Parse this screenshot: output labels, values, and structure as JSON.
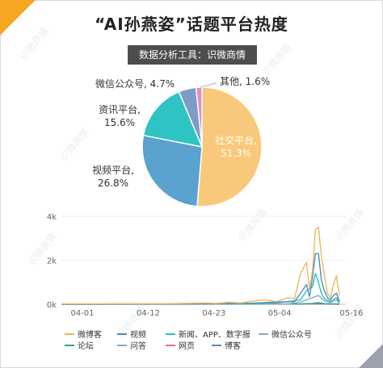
{
  "title": "“AI孙燕姿”话题平台热度",
  "subtitle": "数据分析工具：识微商情",
  "watermark": "识微商情",
  "colors": {
    "social": "#f8c97a",
    "video": "#5aa2cf",
    "news": "#2ec4c4",
    "wechat": "#7a9cc6",
    "other": "#e38bc6",
    "weibo_line": "#f0b75d",
    "video_line": "#4d8cc0",
    "news_line": "#25c2c2",
    "wechat_line": "#8ea6c8",
    "forum_line": "#2fa37a",
    "qa_line": "#6fb1d8",
    "web_line": "#e7737f",
    "blog_line": "#5e86b8"
  },
  "chart_data": [
    {
      "type": "pie",
      "slices": [
        {
          "name": "社交平台",
          "value": 51.3,
          "label_line1": "社交平台,",
          "label_line2": "51.3%",
          "color": "#f8c97a"
        },
        {
          "name": "视频平台",
          "value": 26.8,
          "label_line1": "视频平台,",
          "label_line2": "26.8%",
          "color": "#5aa2cf"
        },
        {
          "name": "资讯平台",
          "value": 15.6,
          "label_line1": "资讯平台,",
          "label_line2": "15.6%",
          "color": "#2ec4c4"
        },
        {
          "name": "微信公众号",
          "value": 4.7,
          "label": "微信公众号, 4.7%",
          "color": "#7a9cc6"
        },
        {
          "name": "其他",
          "value": 1.6,
          "label": "其他, 1.6%",
          "color": "#e38bc6"
        }
      ]
    },
    {
      "type": "line",
      "x_start": "04-01",
      "x_end": "05-17",
      "x_ticks": [
        "04-01",
        "04-12",
        "04-23",
        "05-04",
        "05-16"
      ],
      "y_ticks": [
        "0k",
        "2k",
        "4k"
      ],
      "ylim": [
        0,
        4000
      ],
      "grid": true,
      "legend_position": "bottom",
      "series": [
        {
          "name": "微博客",
          "color": "#f0b75d",
          "values": [
            [
              0,
              20
            ],
            [
              18,
              25
            ],
            [
              24,
              60
            ],
            [
              26,
              40
            ],
            [
              28,
              90
            ],
            [
              30,
              60
            ],
            [
              32,
              150
            ],
            [
              34,
              200
            ],
            [
              36,
              120
            ],
            [
              38,
              300
            ],
            [
              39,
              250
            ],
            [
              40,
              1400
            ],
            [
              41,
              1900
            ],
            [
              41.5,
              700
            ],
            [
              42,
              1500
            ],
            [
              42.5,
              3400
            ],
            [
              43,
              3500
            ],
            [
              43.5,
              2200
            ],
            [
              44,
              1300
            ],
            [
              44.5,
              500
            ],
            [
              45,
              300
            ],
            [
              45.5,
              900
            ],
            [
              46,
              1300
            ],
            [
              46.5,
              400
            ]
          ]
        },
        {
          "name": "视频",
          "color": "#4d8cc0",
          "values": [
            [
              0,
              10
            ],
            [
              24,
              20
            ],
            [
              32,
              50
            ],
            [
              36,
              100
            ],
            [
              39,
              120
            ],
            [
              40,
              500
            ],
            [
              41,
              900
            ],
            [
              41.5,
              350
            ],
            [
              42,
              1200
            ],
            [
              42.5,
              2300
            ],
            [
              43,
              2300
            ],
            [
              43.5,
              1100
            ],
            [
              44,
              600
            ],
            [
              44.5,
              300
            ],
            [
              45,
              200
            ],
            [
              45.5,
              400
            ],
            [
              46,
              500
            ],
            [
              46.5,
              150
            ]
          ]
        },
        {
          "name": "新闻、APP、数字报",
          "color": "#25c2c2",
          "values": [
            [
              0,
              5
            ],
            [
              30,
              30
            ],
            [
              36,
              60
            ],
            [
              40,
              200
            ],
            [
              41,
              600
            ],
            [
              42,
              800
            ],
            [
              42.5,
              1400
            ],
            [
              43,
              1000
            ],
            [
              43.5,
              500
            ],
            [
              44,
              250
            ],
            [
              45,
              120
            ],
            [
              46,
              300
            ],
            [
              46.5,
              100
            ]
          ]
        },
        {
          "name": "微信公众号",
          "color": "#8ea6c8",
          "values": [
            [
              0,
              5
            ],
            [
              38,
              20
            ],
            [
              40,
              100
            ],
            [
              41,
              200
            ],
            [
              42,
              300
            ],
            [
              43,
              400
            ],
            [
              44,
              150
            ],
            [
              45,
              80
            ],
            [
              46,
              200
            ],
            [
              46.5,
              50
            ]
          ]
        },
        {
          "name": "论坛",
          "color": "#2fa37a",
          "values": [
            [
              0,
              0
            ],
            [
              40,
              10
            ],
            [
              42,
              30
            ],
            [
              43,
              60
            ],
            [
              44,
              20
            ],
            [
              46.5,
              10
            ]
          ]
        },
        {
          "name": "问答",
          "color": "#6fb1d8",
          "values": [
            [
              0,
              0
            ],
            [
              40,
              15
            ],
            [
              42,
              40
            ],
            [
              43,
              80
            ],
            [
              44,
              25
            ],
            [
              46.5,
              10
            ]
          ]
        },
        {
          "name": "网页",
          "color": "#e7737f",
          "values": [
            [
              0,
              0
            ],
            [
              40,
              8
            ],
            [
              42,
              20
            ],
            [
              43,
              30
            ],
            [
              44,
              10
            ],
            [
              46.5,
              5
            ]
          ]
        },
        {
          "name": "博客",
          "color": "#5e86b8",
          "values": [
            [
              0,
              0
            ],
            [
              41,
              10
            ],
            [
              43,
              20
            ],
            [
              44,
              8
            ],
            [
              46.5,
              4
            ]
          ]
        }
      ]
    }
  ]
}
